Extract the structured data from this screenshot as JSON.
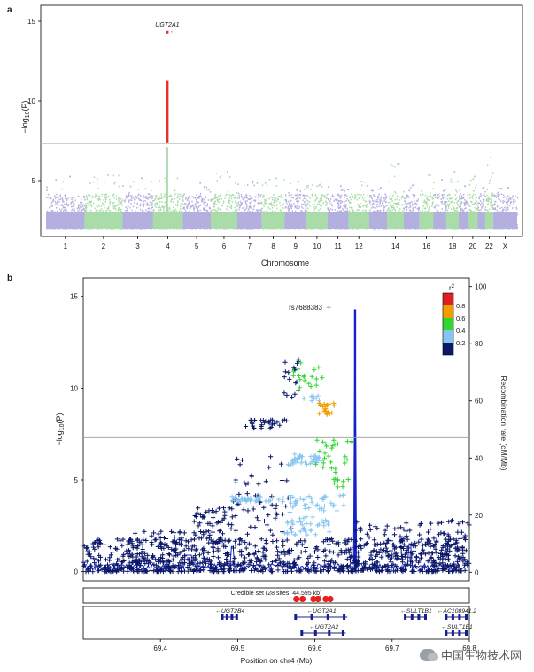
{
  "watermark": "中国生物技术网",
  "chart_data": [
    {
      "panel": "a",
      "type": "scatter",
      "subtype": "manhattan",
      "ylabel_pre": "−log",
      "ylabel_sub": "10",
      "ylabel_post": "(P)",
      "xlabel": "Chromosome",
      "ylim": [
        1.5,
        16
      ],
      "yticks": [
        5,
        10,
        15
      ],
      "genome_wide_threshold": 7.3,
      "chromosomes": [
        {
          "label": "1",
          "size": 249
        },
        {
          "label": "2",
          "size": 243
        },
        {
          "label": "3",
          "size": 198
        },
        {
          "label": "4",
          "size": 191
        },
        {
          "label": "5",
          "size": 181
        },
        {
          "label": "6",
          "size": 171
        },
        {
          "label": "7",
          "size": 159
        },
        {
          "label": "8",
          "size": 146
        },
        {
          "label": "9",
          "size": 141
        },
        {
          "label": "10",
          "size": 136
        },
        {
          "label": "11",
          "size": 135
        },
        {
          "label": "12",
          "size": 134
        },
        {
          "label": "13",
          "size": 115
        },
        {
          "label": "14",
          "size": 107
        },
        {
          "label": "15",
          "size": 102
        },
        {
          "label": "16",
          "size": 90
        },
        {
          "label": "17",
          "size": 83
        },
        {
          "label": "18",
          "size": 80
        },
        {
          "label": "19",
          "size": 59
        },
        {
          "label": "20",
          "size": 64
        },
        {
          "label": "21",
          "size": 48
        },
        {
          "label": "22",
          "size": 51
        },
        {
          "label": "X",
          "size": 155
        }
      ],
      "tick_labels_shown": [
        "1",
        "2",
        "3",
        "4",
        "5",
        "6",
        "7",
        "8",
        "9",
        "10",
        "11",
        "12",
        "14",
        "16",
        "18",
        "20",
        "22",
        "X"
      ],
      "colors": {
        "odd": "#b3b0e0",
        "even": "#a9dca9",
        "hit": "#e8302a",
        "threshold": "#bfbfbf"
      },
      "peaks": [
        {
          "chrom": "1",
          "max": 5.3
        },
        {
          "chrom": "2",
          "max": 5.4
        },
        {
          "chrom": "3",
          "max": 5.2
        },
        {
          "chrom": "4",
          "max": 14.4
        },
        {
          "chrom": "5",
          "max": 4.9
        },
        {
          "chrom": "6",
          "max": 5.6
        },
        {
          "chrom": "7",
          "max": 5.0
        },
        {
          "chrom": "8",
          "max": 5.2
        },
        {
          "chrom": "9",
          "max": 5.0
        },
        {
          "chrom": "10",
          "max": 4.8
        },
        {
          "chrom": "11",
          "max": 4.7
        },
        {
          "chrom": "12",
          "max": 5.0
        },
        {
          "chrom": "13",
          "max": 4.6
        },
        {
          "chrom": "14",
          "max": 6.1
        },
        {
          "chrom": "15",
          "max": 4.8
        },
        {
          "chrom": "16",
          "max": 5.4
        },
        {
          "chrom": "17",
          "max": 5.1
        },
        {
          "chrom": "18",
          "max": 5.6
        },
        {
          "chrom": "19",
          "max": 4.7
        },
        {
          "chrom": "20",
          "max": 5.3
        },
        {
          "chrom": "21",
          "max": 4.6
        },
        {
          "chrom": "22",
          "max": 6.5
        },
        {
          "chrom": "X",
          "max": 4.6
        }
      ],
      "annotations": [
        {
          "text": "UGT2A1",
          "chrom": "4",
          "y": 14.4
        }
      ],
      "hit_locus": {
        "chrom": "4",
        "ymin": 7.4,
        "ymax": 11.3,
        "top": 14.4
      }
    },
    {
      "panel": "b",
      "type": "scatter",
      "subtype": "regional_association",
      "ylabel_pre": "−log",
      "ylabel_sub": "10",
      "ylabel_post": "(P)",
      "y2label": "Recombination rate (cM/Mb)",
      "xlabel": "Position on chr4 (Mb)",
      "xlim": [
        69.3,
        69.8
      ],
      "xticks": [
        69.4,
        69.5,
        69.6,
        69.7,
        69.8
      ],
      "ylim": [
        -0.5,
        16
      ],
      "yticks": [
        0,
        5,
        10,
        15
      ],
      "y2lim": [
        -3,
        103
      ],
      "y2ticks": [
        0,
        20,
        40,
        60,
        80,
        100
      ],
      "genome_wide_threshold": 7.3,
      "lead_snp": {
        "label": "rs7688383",
        "x": 69.618,
        "y": 14.4
      },
      "recombination_spike": {
        "x": 69.652,
        "peak": 92
      },
      "r2_legend": {
        "title": "r",
        "title_sup": "2",
        "ticks": [
          "0.2",
          "0.4",
          "0.6",
          "0.8"
        ],
        "bins": [
          {
            "max": 0.2,
            "color": "#0b1769"
          },
          {
            "max": 0.4,
            "color": "#86c5f0"
          },
          {
            "max": 0.6,
            "color": "#2fd72f"
          },
          {
            "max": 0.8,
            "color": "#f29d00"
          },
          {
            "max": 1.0,
            "color": "#e02020"
          }
        ]
      },
      "credible_set": {
        "label": "Credible set (28 sites, 44.595 kb)",
        "points": [
          69.576,
          69.584,
          69.598,
          69.604,
          69.614,
          69.62
        ]
      },
      "genes": [
        {
          "name": "UGT2B4",
          "start": 69.48,
          "end": 69.5,
          "strand": "-",
          "row": 0
        },
        {
          "name": "UGT2A1",
          "start": 69.575,
          "end": 69.642,
          "strand": "-",
          "row": 0
        },
        {
          "name": "SULT1B1",
          "start": 69.717,
          "end": 69.745,
          "strand": "-",
          "row": 0
        },
        {
          "name": "AC108941.2",
          "start": 69.77,
          "end": 69.8,
          "strand": "-",
          "row": 0
        },
        {
          "name": "UGT2A2",
          "start": 69.583,
          "end": 69.64,
          "strand": "-",
          "row": 1
        },
        {
          "name": "SULT1E1",
          "start": 69.77,
          "end": 69.8,
          "strand": "-",
          "row": 1
        }
      ]
    }
  ]
}
